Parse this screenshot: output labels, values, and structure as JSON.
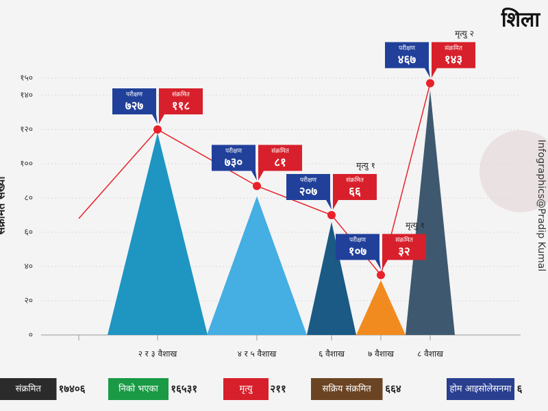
{
  "chart_data": {
    "type": "triangle",
    "brand": "शिला",
    "credit": "Infographics@Pradip Kumal",
    "y_label": "संक्रमित संख्या",
    "categories": [
      null,
      "२ र ३ वैशाख",
      "४ र ५ वैशाख",
      "६ वैशाख",
      "७ वैशाख",
      "८ वैशाख"
    ],
    "series": [
      {
        "name": "परीक्षण",
        "color": "#21409a",
        "values": [
          null,
          727,
          730,
          207,
          107,
          467
        ],
        "value_labels": [
          null,
          "७२७",
          "७३०",
          "२०७",
          "१०७",
          "४६७"
        ]
      },
      {
        "name": "संक्रमित",
        "color": "#d7202b",
        "values": [
          null,
          118,
          81,
          66,
          32,
          143
        ],
        "value_labels": [
          null,
          "११८",
          "८१",
          "६६",
          "३२",
          "१४३"
        ],
        "bar_colors": [
          null,
          "#1f95c2",
          "#45aee2",
          "#1a5a84",
          "#f28b1f",
          "#3e596f"
        ]
      }
    ],
    "line": {
      "color": "#e8212a",
      "values": [
        68,
        120,
        87,
        70,
        35,
        147
      ]
    },
    "deaths": [
      null,
      null,
      null,
      "मृत्यु १",
      "मृत्यु १",
      "मृत्यु २"
    ],
    "ylim": [
      0,
      150
    ],
    "yticks": [
      {
        "value": 0,
        "label": "०"
      },
      {
        "value": 20,
        "label": "२०"
      },
      {
        "value": 40,
        "label": "४०"
      },
      {
        "value": 60,
        "label": "६०"
      },
      {
        "value": 80,
        "label": "८०"
      },
      {
        "value": 100,
        "label": "१००"
      },
      {
        "value": 120,
        "label": "१२०"
      },
      {
        "value": 140,
        "label": "१४०"
      },
      {
        "value": 150,
        "label": "१५०"
      }
    ],
    "summary": [
      {
        "label": "संक्रमित",
        "value": "१७४०६",
        "color": "#2b2b2b"
      },
      {
        "label": "निको भएका",
        "value": "१६५३१",
        "color": "#1a9a45"
      },
      {
        "label": "मृत्यु",
        "value": "२११",
        "color": "#d7202b"
      },
      {
        "label": "सक्रिय संक्रमित",
        "value": "६६४",
        "color": "#6b4423"
      },
      {
        "label": "होम आइसोलेसनमा",
        "value": "६",
        "color": "#2a3f8f"
      }
    ]
  }
}
